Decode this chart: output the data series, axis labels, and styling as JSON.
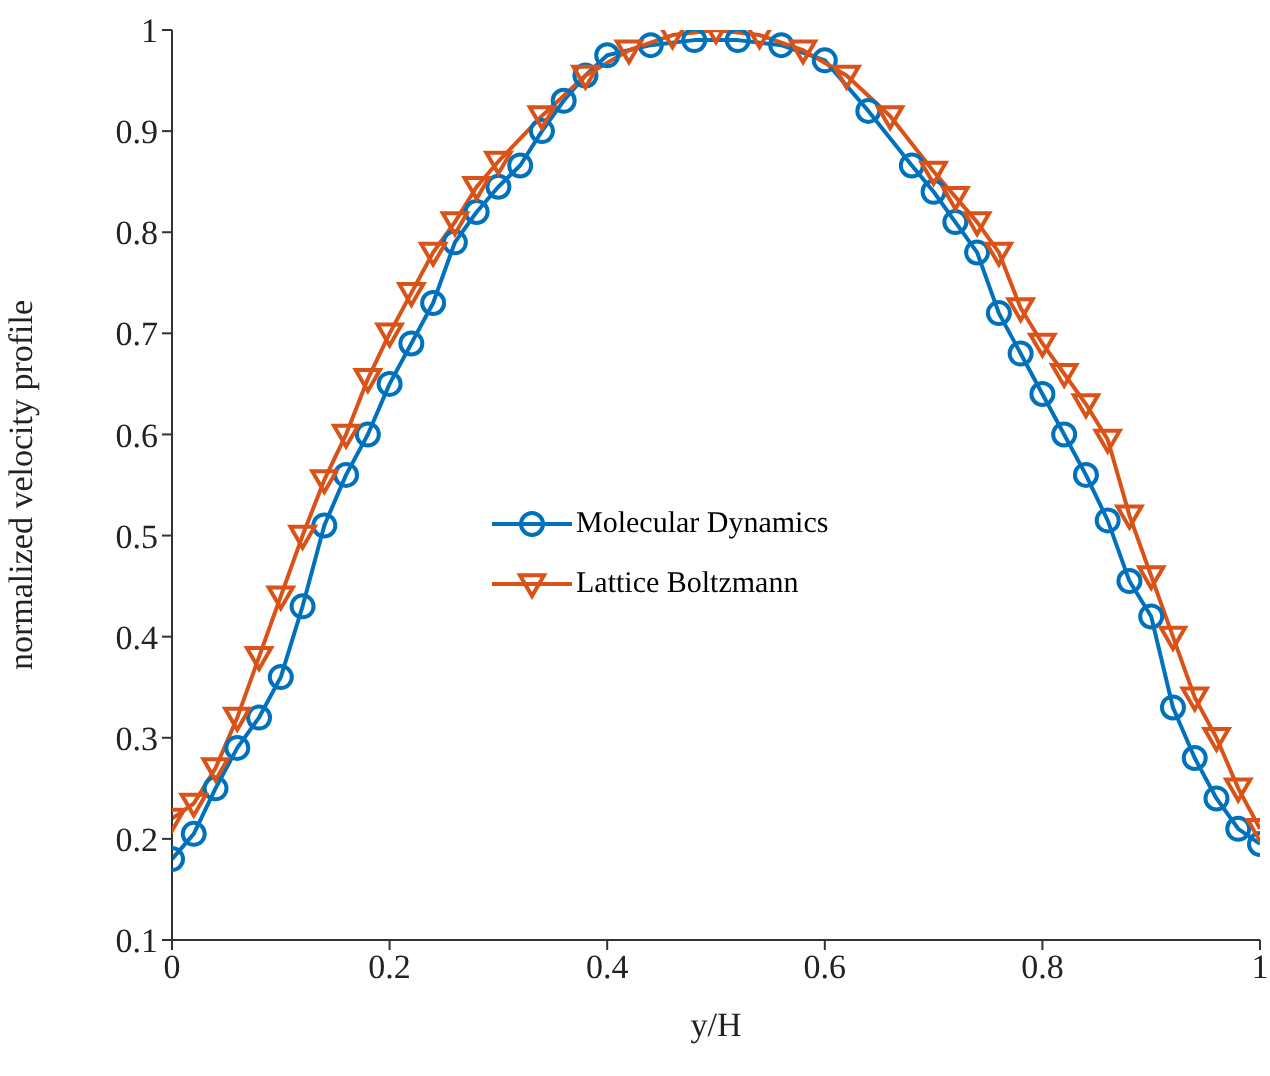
{
  "chart_data": {
    "type": "line",
    "xlabel": "y/H",
    "ylabel": "normalized velocity profile",
    "xlim": [
      0,
      1
    ],
    "xticks": [
      0,
      0.2,
      0.4,
      0.6,
      0.8,
      1
    ],
    "ylim": [
      0.1,
      1
    ],
    "yticks": [
      0.1,
      0.2,
      0.3,
      0.4,
      0.5,
      0.6,
      0.7,
      0.8,
      0.9,
      1
    ],
    "grid": false,
    "legend": "left",
    "line_style": "solid",
    "series": [
      {
        "name": "Molecular Dynamics",
        "color": "#0072bd",
        "marker": "circle",
        "x": [
          0,
          0.02,
          0.04,
          0.06,
          0.08,
          0.1,
          0.12,
          0.14,
          0.16,
          0.18,
          0.2,
          0.22,
          0.24,
          0.26,
          0.28,
          0.3,
          0.32,
          0.34,
          0.36,
          0.38,
          0.4,
          0.44,
          0.48,
          0.52,
          0.56,
          0.6,
          0.64,
          0.68,
          0.7,
          0.72,
          0.74,
          0.76,
          0.78,
          0.8,
          0.82,
          0.84,
          0.86,
          0.88,
          0.9,
          0.92,
          0.94,
          0.96,
          0.98,
          1
        ],
        "values": [
          0.18,
          0.205,
          0.25,
          0.29,
          0.32,
          0.36,
          0.43,
          0.51,
          0.56,
          0.6,
          0.65,
          0.69,
          0.73,
          0.79,
          0.82,
          0.845,
          0.866,
          0.9,
          0.93,
          0.955,
          0.975,
          0.985,
          0.99,
          0.99,
          0.985,
          0.97,
          0.92,
          0.866,
          0.84,
          0.81,
          0.78,
          0.72,
          0.68,
          0.64,
          0.6,
          0.56,
          0.515,
          0.455,
          0.42,
          0.33,
          0.28,
          0.24,
          0.21,
          0.195
        ]
      },
      {
        "name": "Lattice Boltzmann",
        "color": "#d95319",
        "marker": "triangle",
        "x": [
          0,
          0.02,
          0.04,
          0.06,
          0.08,
          0.1,
          0.12,
          0.14,
          0.16,
          0.18,
          0.2,
          0.22,
          0.24,
          0.26,
          0.28,
          0.3,
          0.34,
          0.38,
          0.42,
          0.46,
          0.5,
          0.54,
          0.58,
          0.62,
          0.66,
          0.7,
          0.72,
          0.74,
          0.76,
          0.78,
          0.8,
          0.82,
          0.84,
          0.86,
          0.88,
          0.9,
          0.92,
          0.94,
          0.96,
          0.98,
          1
        ],
        "values": [
          0.22,
          0.235,
          0.27,
          0.32,
          0.38,
          0.44,
          0.5,
          0.555,
          0.6,
          0.655,
          0.7,
          0.74,
          0.78,
          0.81,
          0.845,
          0.87,
          0.915,
          0.955,
          0.98,
          0.995,
          1,
          0.995,
          0.98,
          0.955,
          0.915,
          0.86,
          0.835,
          0.81,
          0.78,
          0.725,
          0.69,
          0.66,
          0.63,
          0.595,
          0.52,
          0.46,
          0.4,
          0.34,
          0.3,
          0.25,
          0.21
        ]
      }
    ]
  }
}
